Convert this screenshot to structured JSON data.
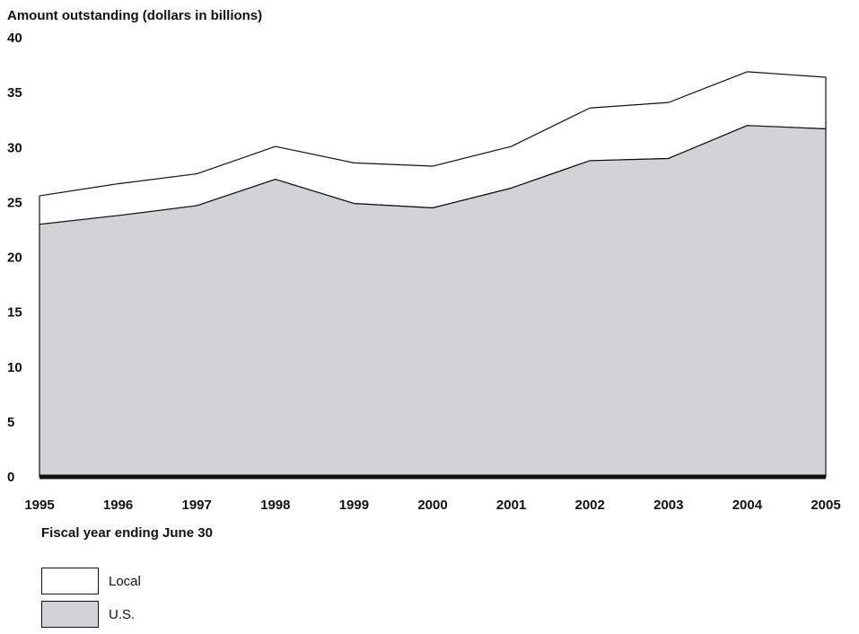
{
  "chart_data": {
    "type": "area",
    "stacked": true,
    "ylabel": "Amount outstanding (dollars in billions)",
    "xlabel": "Fiscal year ending June 30",
    "x": [
      "1995",
      "1996",
      "1997",
      "1998",
      "1999",
      "2000",
      "2001",
      "2002",
      "2003",
      "2004",
      "2005"
    ],
    "ylim": [
      0,
      40
    ],
    "yticks": [
      "0",
      "5",
      "10",
      "15",
      "20",
      "25",
      "30",
      "35",
      "40"
    ],
    "series": [
      {
        "name": "U.S.",
        "color": "#d1d3d4",
        "values": [
          23.0,
          23.8,
          24.7,
          27.1,
          24.9,
          24.5,
          26.3,
          28.8,
          29.0,
          32.0,
          31.7
        ]
      },
      {
        "name": "Local",
        "color": "#ffffff",
        "values": [
          2.6,
          2.9,
          2.9,
          3.0,
          3.7,
          3.8,
          3.8,
          4.8,
          5.1,
          4.9,
          4.7
        ]
      }
    ],
    "legend_placement": "bottom-left",
    "grid": false
  }
}
